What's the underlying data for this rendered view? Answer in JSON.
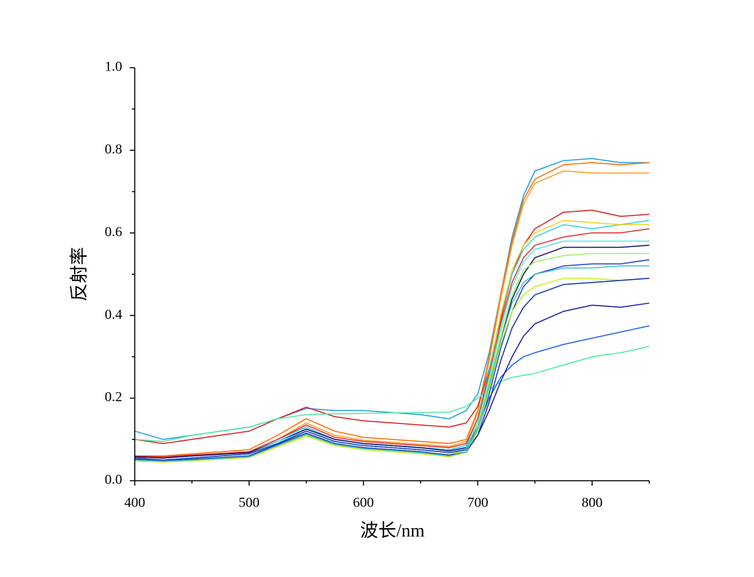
{
  "chart_data": {
    "type": "line",
    "x_label": "波长/nm",
    "y_label": "反射率",
    "xlim": [
      400,
      850
    ],
    "ylim": [
      0,
      1
    ],
    "xticks": [
      400,
      500,
      600,
      700,
      800
    ],
    "xminorticks": [
      450,
      550,
      650,
      750,
      850
    ],
    "yticks": [
      {
        "value": 0,
        "label": "0.0"
      },
      {
        "value": 0.2,
        "label": "0.2"
      },
      {
        "value": 0.4,
        "label": "0.4"
      },
      {
        "value": 0.6,
        "label": "0.6"
      },
      {
        "value": 0.8,
        "label": "0.8"
      },
      {
        "value": 1,
        "label": "1.0"
      }
    ],
    "yminorticks": [
      0.1,
      0.3,
      0.5,
      0.7,
      0.9
    ],
    "x": [
      400,
      425,
      450,
      475,
      500,
      525,
      550,
      575,
      600,
      625,
      650,
      675,
      690,
      700,
      710,
      720,
      730,
      740,
      750,
      775,
      800,
      825,
      850
    ],
    "series": [
      {
        "color": "#1f9be0",
        "values": [
          0.12,
          0.1,
          0.11,
          0.12,
          0.13,
          0.15,
          0.175,
          0.17,
          0.17,
          0.165,
          0.16,
          0.15,
          0.17,
          0.21,
          0.31,
          0.45,
          0.59,
          0.69,
          0.75,
          0.775,
          0.78,
          0.77,
          0.77
        ]
      },
      {
        "color": "#ff6a00",
        "values": [
          0.06,
          0.06,
          0.065,
          0.07,
          0.075,
          0.11,
          0.15,
          0.12,
          0.105,
          0.1,
          0.095,
          0.09,
          0.1,
          0.17,
          0.3,
          0.45,
          0.58,
          0.68,
          0.73,
          0.765,
          0.77,
          0.765,
          0.77
        ]
      },
      {
        "color": "#ff9a1a",
        "values": [
          0.055,
          0.058,
          0.062,
          0.066,
          0.07,
          0.1,
          0.14,
          0.11,
          0.098,
          0.093,
          0.088,
          0.083,
          0.095,
          0.165,
          0.29,
          0.44,
          0.57,
          0.67,
          0.72,
          0.75,
          0.745,
          0.745,
          0.745
        ]
      },
      {
        "color": "#d62020",
        "values": [
          0.1,
          0.09,
          0.1,
          0.11,
          0.12,
          0.15,
          0.178,
          0.155,
          0.145,
          0.14,
          0.135,
          0.13,
          0.14,
          0.18,
          0.27,
          0.39,
          0.5,
          0.57,
          0.61,
          0.65,
          0.655,
          0.64,
          0.645
        ]
      },
      {
        "color": "#4de8a0",
        "values": [
          0.1,
          0.095,
          0.11,
          0.12,
          0.13,
          0.15,
          0.16,
          0.162,
          0.163,
          0.164,
          0.165,
          0.166,
          0.18,
          0.2,
          0.22,
          0.24,
          0.25,
          0.255,
          0.26,
          0.28,
          0.3,
          0.31,
          0.325
        ]
      },
      {
        "color": "#2060e0",
        "values": [
          0.06,
          0.055,
          0.06,
          0.065,
          0.07,
          0.1,
          0.13,
          0.1,
          0.09,
          0.085,
          0.08,
          0.075,
          0.085,
          0.13,
          0.2,
          0.25,
          0.28,
          0.3,
          0.31,
          0.33,
          0.345,
          0.36,
          0.375
        ]
      },
      {
        "color": "#1a1aa0",
        "values": [
          0.055,
          0.05,
          0.055,
          0.06,
          0.065,
          0.09,
          0.12,
          0.095,
          0.085,
          0.08,
          0.075,
          0.068,
          0.075,
          0.11,
          0.17,
          0.24,
          0.3,
          0.35,
          0.38,
          0.41,
          0.425,
          0.42,
          0.43
        ]
      },
      {
        "color": "#30d0f0",
        "values": [
          0.06,
          0.055,
          0.06,
          0.065,
          0.07,
          0.1,
          0.13,
          0.1,
          0.09,
          0.085,
          0.08,
          0.075,
          0.085,
          0.15,
          0.27,
          0.4,
          0.5,
          0.56,
          0.59,
          0.62,
          0.61,
          0.62,
          0.63
        ]
      },
      {
        "color": "#f0d020",
        "values": [
          0.05,
          0.048,
          0.05,
          0.055,
          0.06,
          0.09,
          0.115,
          0.09,
          0.08,
          0.075,
          0.07,
          0.063,
          0.075,
          0.14,
          0.26,
          0.4,
          0.51,
          0.57,
          0.6,
          0.63,
          0.625,
          0.62,
          0.62
        ]
      },
      {
        "color": "#e03030",
        "values": [
          0.06,
          0.058,
          0.062,
          0.066,
          0.07,
          0.1,
          0.135,
          0.105,
          0.095,
          0.09,
          0.085,
          0.08,
          0.09,
          0.15,
          0.26,
          0.38,
          0.48,
          0.54,
          0.57,
          0.59,
          0.6,
          0.6,
          0.61
        ]
      },
      {
        "color": "#101060",
        "values": [
          0.058,
          0.055,
          0.06,
          0.064,
          0.068,
          0.095,
          0.125,
          0.1,
          0.09,
          0.085,
          0.08,
          0.072,
          0.08,
          0.13,
          0.23,
          0.34,
          0.44,
          0.5,
          0.54,
          0.565,
          0.565,
          0.565,
          0.57
        ]
      },
      {
        "color": "#50e8e8",
        "values": [
          0.055,
          0.05,
          0.055,
          0.06,
          0.065,
          0.095,
          0.12,
          0.095,
          0.085,
          0.08,
          0.075,
          0.068,
          0.078,
          0.14,
          0.25,
          0.37,
          0.47,
          0.53,
          0.56,
          0.58,
          0.58,
          0.58,
          0.58
        ]
      },
      {
        "color": "#2040d0",
        "values": [
          0.055,
          0.05,
          0.055,
          0.06,
          0.065,
          0.09,
          0.12,
          0.095,
          0.085,
          0.08,
          0.075,
          0.068,
          0.075,
          0.12,
          0.21,
          0.32,
          0.41,
          0.47,
          0.5,
          0.52,
          0.525,
          0.525,
          0.535
        ]
      },
      {
        "color": "#a0f060",
        "values": [
          0.05,
          0.046,
          0.05,
          0.054,
          0.058,
          0.085,
          0.11,
          0.087,
          0.078,
          0.073,
          0.068,
          0.06,
          0.07,
          0.13,
          0.24,
          0.36,
          0.45,
          0.51,
          0.53,
          0.545,
          0.55,
          0.55,
          0.55
        ]
      },
      {
        "color": "#c8f020",
        "values": [
          0.048,
          0.045,
          0.048,
          0.052,
          0.056,
          0.082,
          0.108,
          0.085,
          0.075,
          0.07,
          0.065,
          0.058,
          0.068,
          0.12,
          0.22,
          0.33,
          0.41,
          0.45,
          0.47,
          0.49,
          0.49,
          0.485,
          0.49
        ]
      },
      {
        "color": "#1030b0",
        "values": [
          0.052,
          0.048,
          0.052,
          0.056,
          0.06,
          0.088,
          0.115,
          0.09,
          0.08,
          0.075,
          0.07,
          0.062,
          0.07,
          0.11,
          0.19,
          0.29,
          0.37,
          0.42,
          0.45,
          0.475,
          0.48,
          0.485,
          0.49
        ]
      },
      {
        "color": "#40c0c0",
        "values": [
          0.05,
          0.047,
          0.05,
          0.054,
          0.058,
          0.085,
          0.112,
          0.088,
          0.078,
          0.073,
          0.068,
          0.06,
          0.07,
          0.125,
          0.23,
          0.34,
          0.43,
          0.48,
          0.5,
          0.515,
          0.515,
          0.52,
          0.52
        ]
      }
    ]
  }
}
